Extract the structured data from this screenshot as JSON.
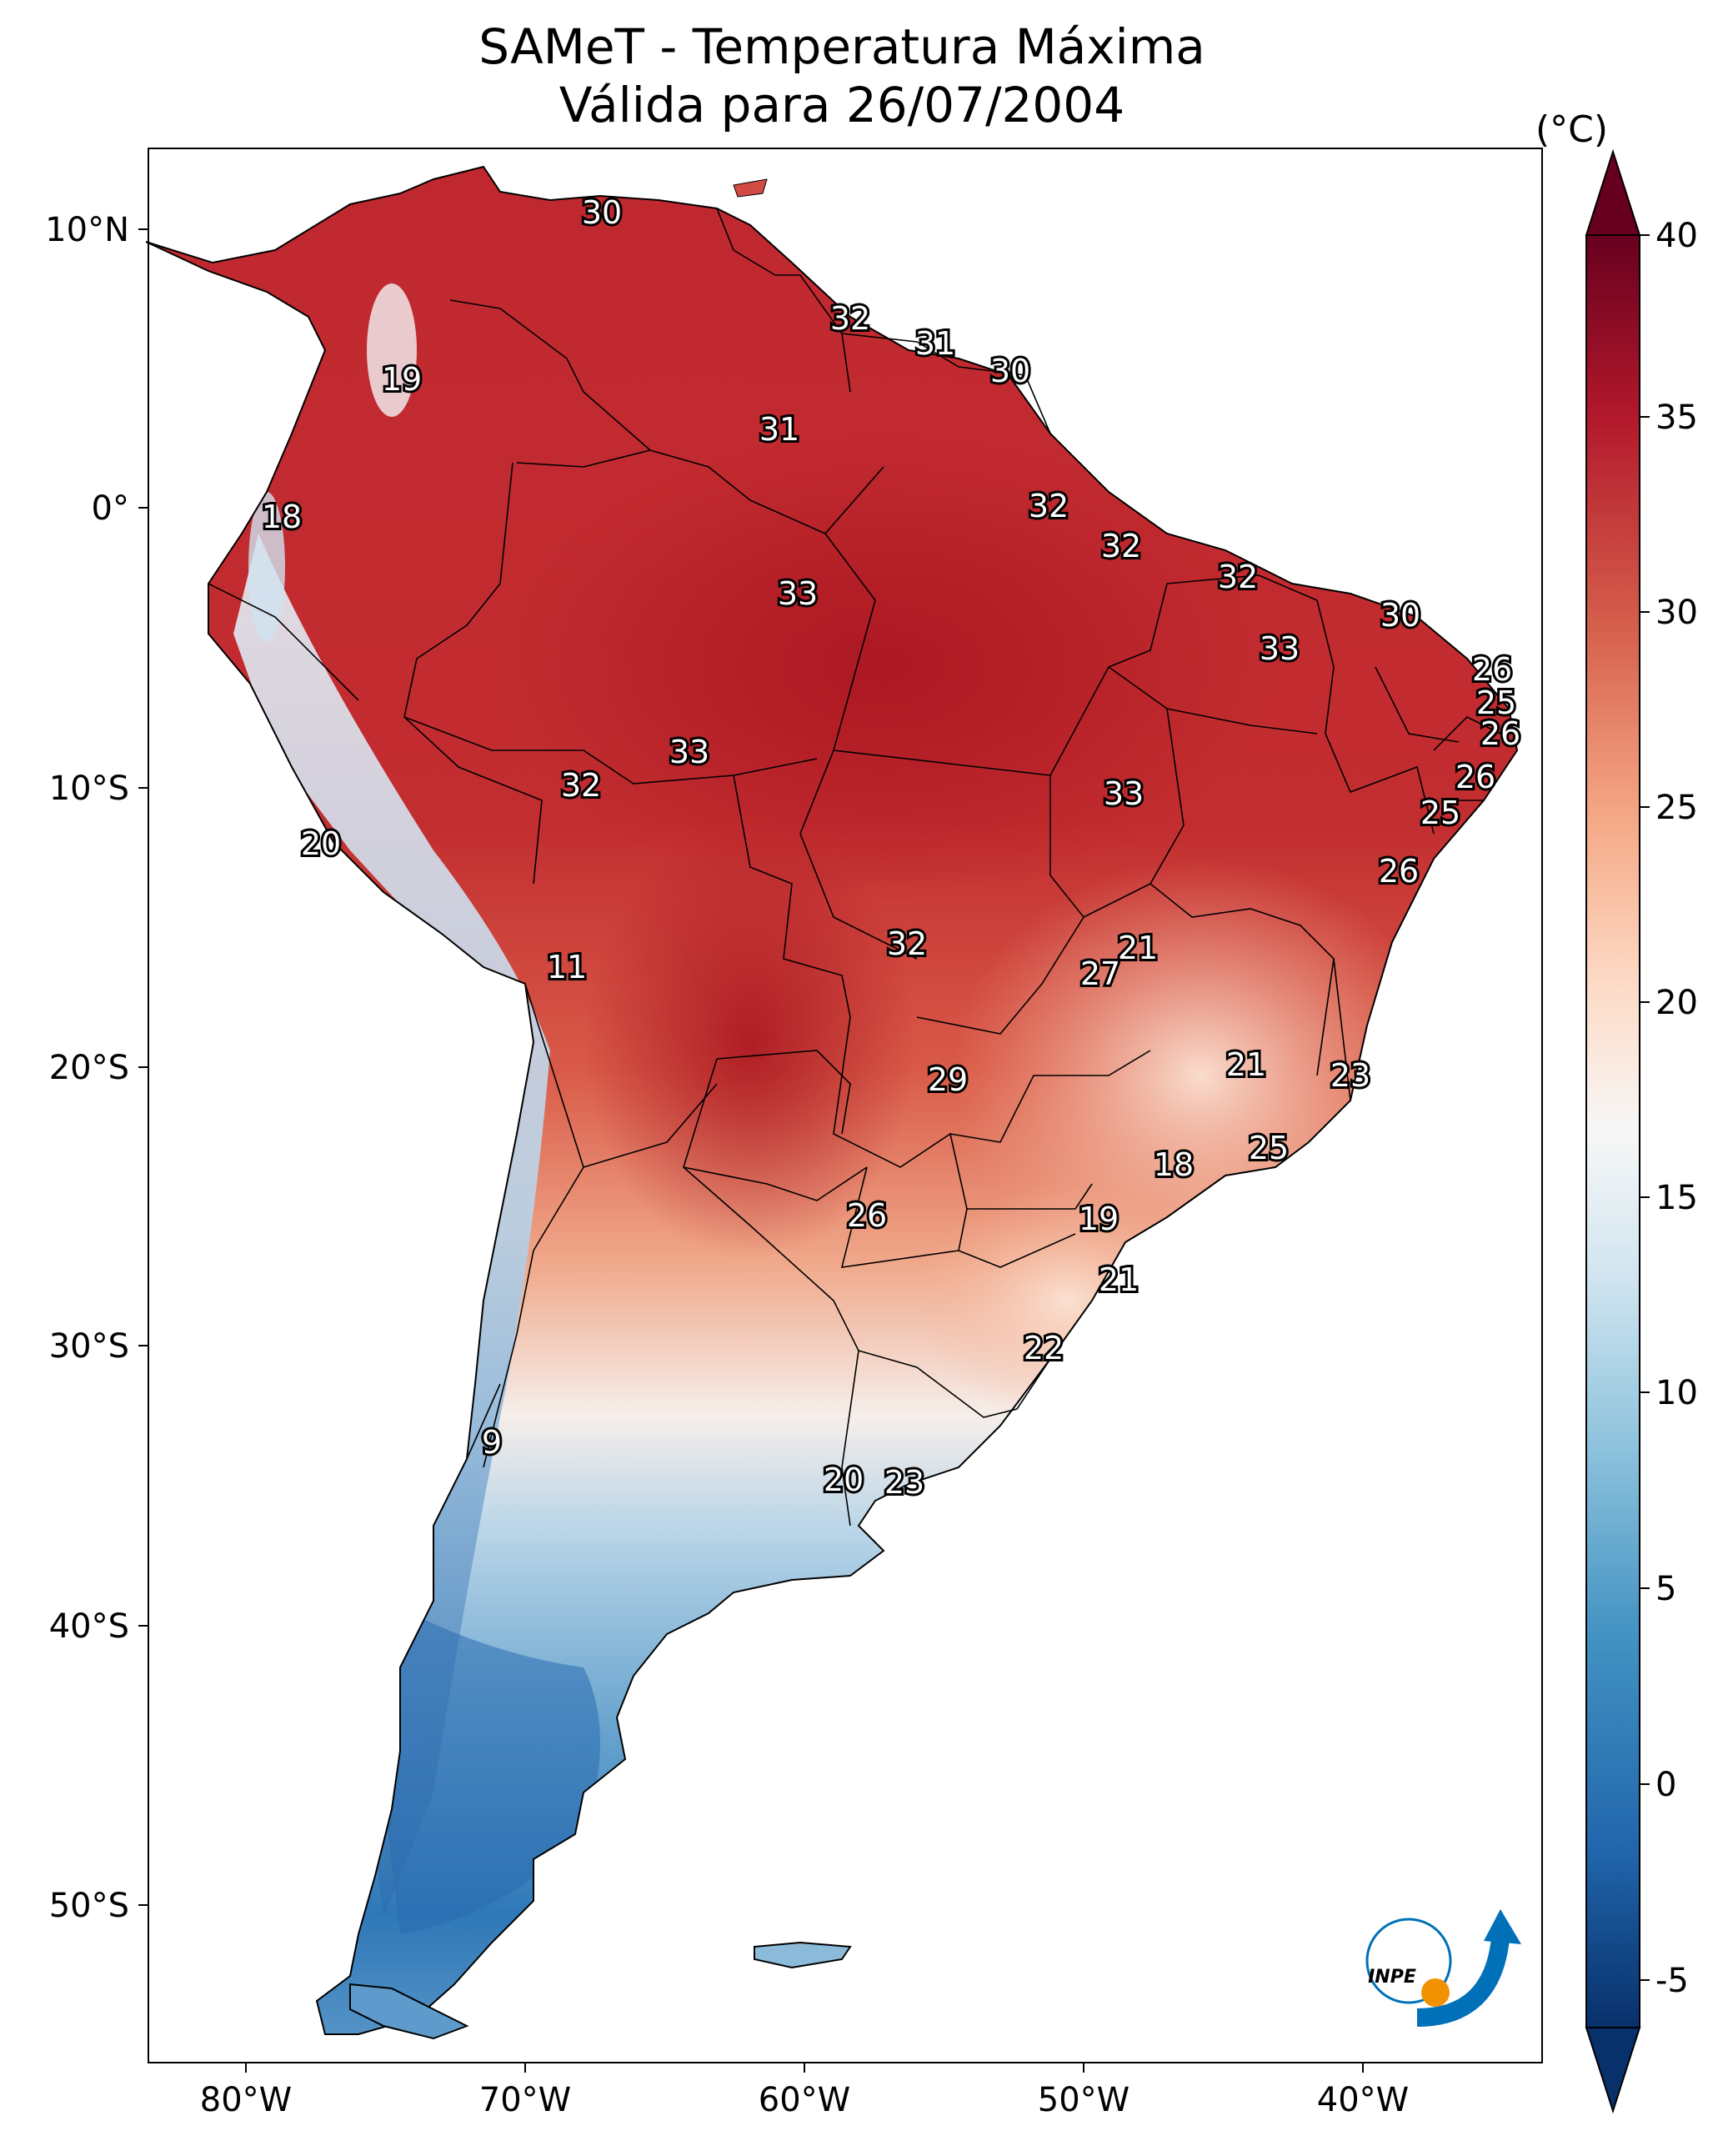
{
  "figure": {
    "title_line1": "SAMeT - Temperatura Máxima",
    "title_line2": "Válida para 26/07/2004"
  },
  "colorbar": {
    "unit": "(°C)",
    "min": -5,
    "max": 40,
    "extend": "both",
    "ticks": [
      "40",
      "35",
      "30",
      "25",
      "20",
      "15",
      "10",
      "5",
      "0",
      "-5"
    ],
    "colormap": "RdBu_r",
    "stops": [
      "#08306b",
      "#2166ac",
      "#4393c3",
      "#92c5de",
      "#d1e5f0",
      "#f7f7f7",
      "#fddbc7",
      "#f4a582",
      "#d6604d",
      "#b2182b",
      "#67001f"
    ]
  },
  "axes": {
    "lat_ticks": [
      "10°N",
      "0°",
      "10°S",
      "20°S",
      "30°S",
      "40°S",
      "50°S"
    ],
    "lon_ticks": [
      "80°W",
      "70°W",
      "60°W",
      "50°W",
      "40°W"
    ]
  },
  "logo": {
    "text": "INPE",
    "icon": "inpe-logo-icon",
    "dot_color": "#f39200",
    "arrow_color": "#0070b8"
  },
  "labels": [
    {
      "value": "30"
    },
    {
      "value": "19"
    },
    {
      "value": "32"
    },
    {
      "value": "31"
    },
    {
      "value": "30"
    },
    {
      "value": "31"
    },
    {
      "value": "18"
    },
    {
      "value": "32"
    },
    {
      "value": "32"
    },
    {
      "value": "32"
    },
    {
      "value": "33"
    },
    {
      "value": "30"
    },
    {
      "value": "33"
    },
    {
      "value": "26"
    },
    {
      "value": "25"
    },
    {
      "value": "26"
    },
    {
      "value": "33"
    },
    {
      "value": "32"
    },
    {
      "value": "26"
    },
    {
      "value": "33"
    },
    {
      "value": "25"
    },
    {
      "value": "20"
    },
    {
      "value": "26"
    },
    {
      "value": "21"
    },
    {
      "value": "11"
    },
    {
      "value": "32"
    },
    {
      "value": "27"
    },
    {
      "value": "21"
    },
    {
      "value": "23"
    },
    {
      "value": "29"
    },
    {
      "value": "25"
    },
    {
      "value": "18"
    },
    {
      "value": "26"
    },
    {
      "value": "19"
    },
    {
      "value": "21"
    },
    {
      "value": "22"
    },
    {
      "value": "9"
    },
    {
      "value": "20"
    },
    {
      "value": "23"
    }
  ]
}
